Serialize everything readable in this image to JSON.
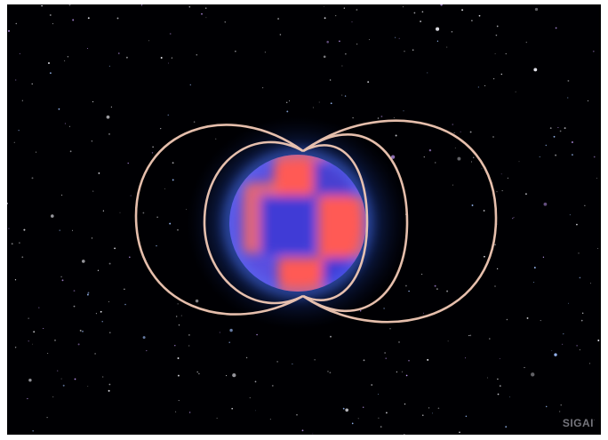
{
  "image": {
    "description_colors": {
      "background": "#000003",
      "glow": "#2f66ff",
      "red_lobes": "#ff5a55",
      "blue_lobes": "#4a3fd0",
      "field_lines": "#f2c9b5"
    },
    "watermark": "SIGAI"
  }
}
